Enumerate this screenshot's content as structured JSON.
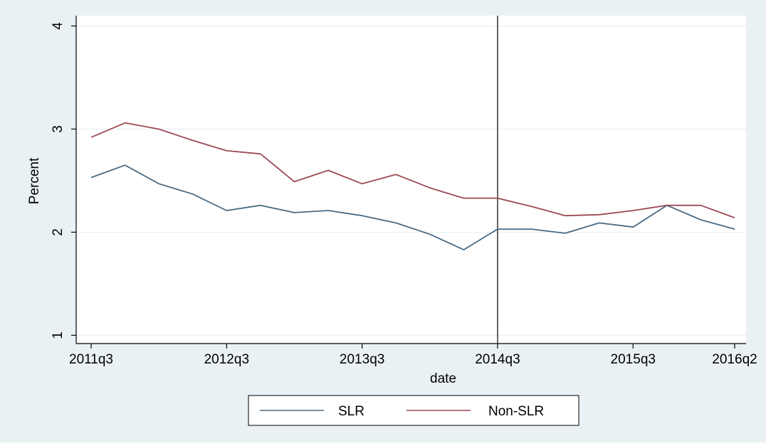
{
  "chart_data": {
    "type": "line",
    "title": "",
    "xlabel": "date",
    "ylabel": "Percent",
    "x": [
      "2011q3",
      "2011q4",
      "2012q1",
      "2012q2",
      "2012q3",
      "2012q4",
      "2013q1",
      "2013q2",
      "2013q3",
      "2013q4",
      "2014q1",
      "2014q2",
      "2014q3",
      "2014q4",
      "2015q1",
      "2015q2",
      "2015q3",
      "2015q4",
      "2016q1",
      "2016q2"
    ],
    "xticks": [
      "2011q3",
      "2012q3",
      "2013q3",
      "2014q3",
      "2015q3",
      "2016q2"
    ],
    "yticks": [
      1,
      2,
      3,
      4
    ],
    "ylim": [
      0.92,
      4.1
    ],
    "grid": true,
    "vline": "2014q3",
    "legend_position": "bottom",
    "series": [
      {
        "name": "SLR",
        "color": "#4a6a82",
        "values": [
          2.53,
          2.65,
          2.47,
          2.37,
          2.21,
          2.26,
          2.19,
          2.21,
          2.16,
          2.09,
          1.98,
          1.83,
          2.03,
          2.03,
          1.99,
          2.09,
          2.05,
          2.26,
          2.12,
          2.03
        ]
      },
      {
        "name": "Non-SLR",
        "color": "#9c4a55",
        "values": [
          2.92,
          3.06,
          3.0,
          2.89,
          2.79,
          2.76,
          2.49,
          2.6,
          2.47,
          2.56,
          2.43,
          2.33,
          2.33,
          2.25,
          2.16,
          2.17,
          2.21,
          2.26,
          2.26,
          2.14
        ]
      }
    ]
  }
}
